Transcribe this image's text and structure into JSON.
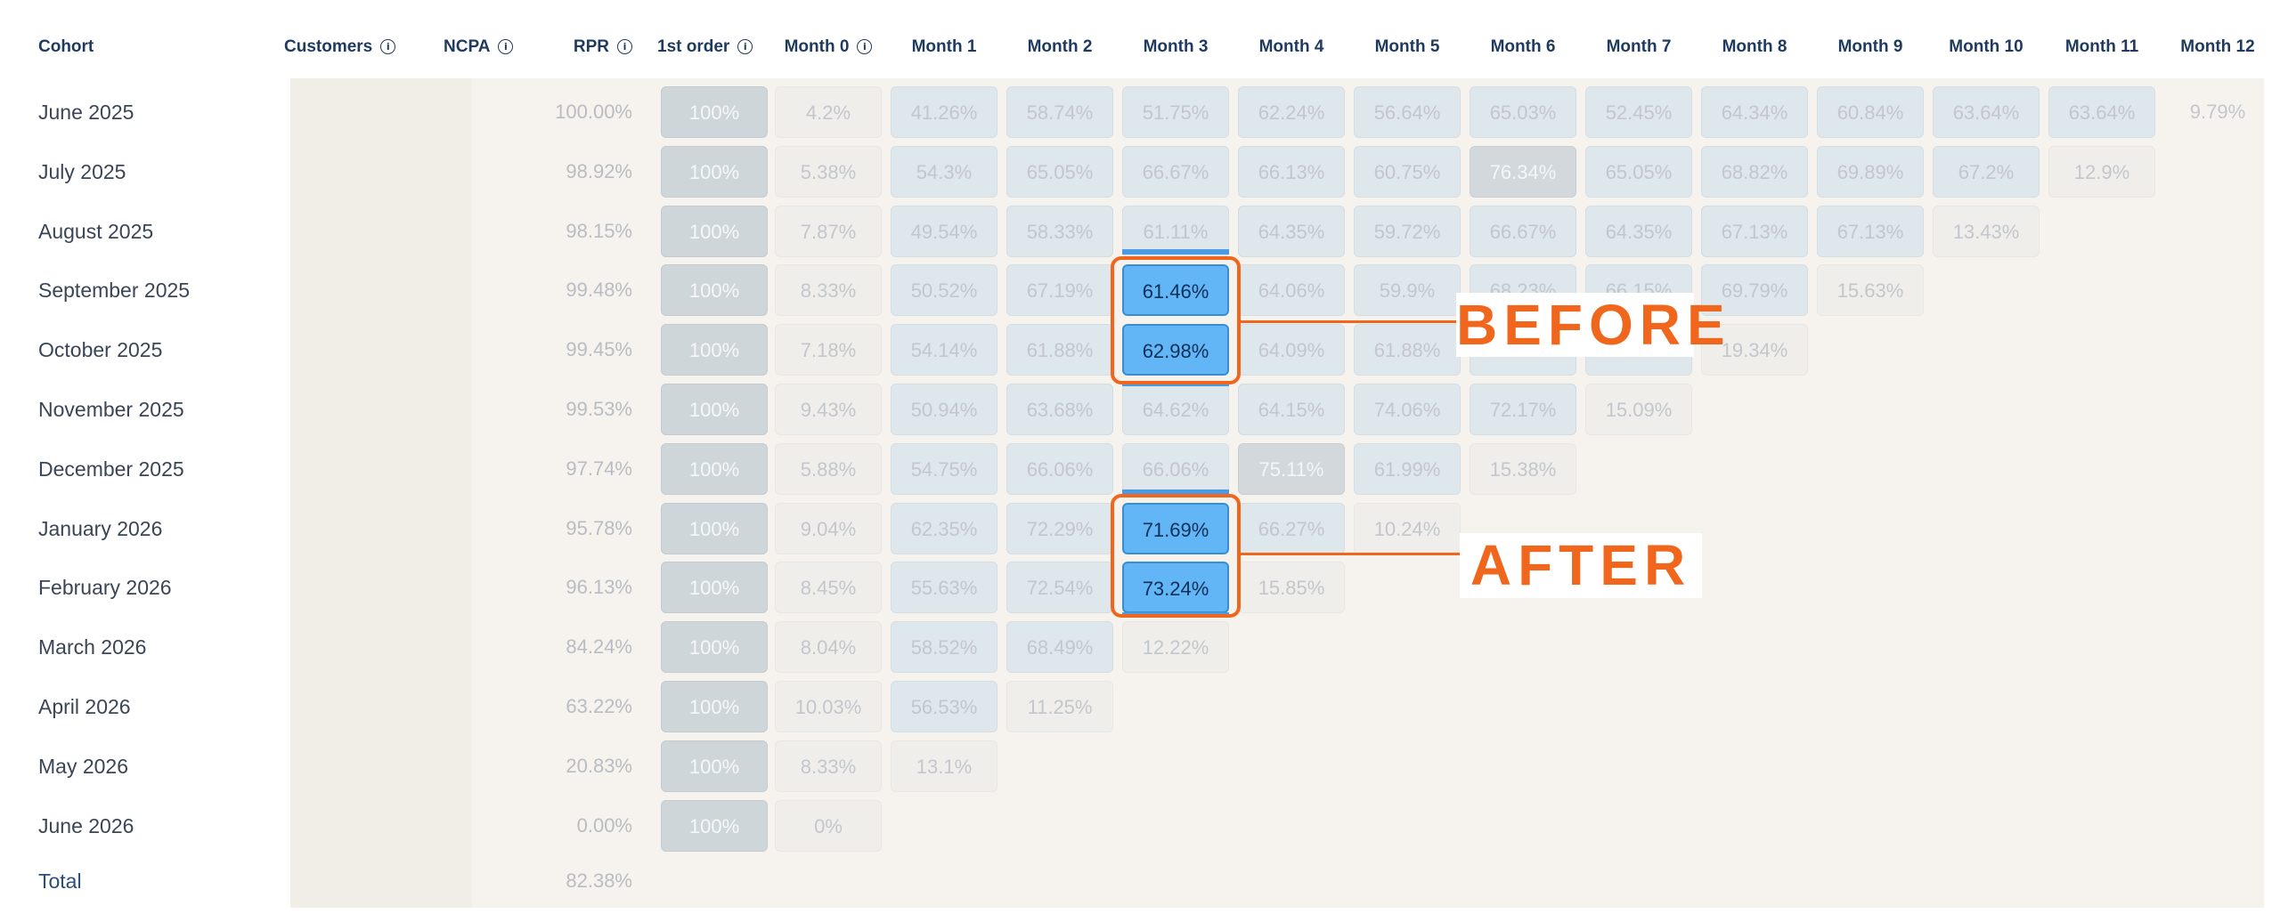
{
  "columns": {
    "cohort": "Cohort",
    "customers": "Customers",
    "ncpa": "NCPA",
    "rpr": "RPR",
    "first_order": "1st order",
    "months": [
      "Month 0",
      "Month 1",
      "Month 2",
      "Month 3",
      "Month 4",
      "Month 5",
      "Month 6",
      "Month 7",
      "Month 8",
      "Month 9",
      "Month 10",
      "Month 11",
      "Month 12"
    ]
  },
  "info_icon_glyph": "i",
  "rows": [
    {
      "label": "June 2025",
      "rpr": "100.00%",
      "first": "100%",
      "months": [
        "4.2%",
        "41.26%",
        "58.74%",
        "51.75%",
        "62.24%",
        "56.64%",
        "65.03%",
        "52.45%",
        "64.34%",
        "60.84%",
        "63.64%",
        "63.64%",
        "9.79%"
      ]
    },
    {
      "label": "July 2025",
      "rpr": "98.92%",
      "first": "100%",
      "months": [
        "5.38%",
        "54.3%",
        "65.05%",
        "66.67%",
        "66.13%",
        "60.75%",
        "76.34%",
        "65.05%",
        "68.82%",
        "69.89%",
        "67.2%",
        "12.9%"
      ]
    },
    {
      "label": "August 2025",
      "rpr": "98.15%",
      "first": "100%",
      "months": [
        "7.87%",
        "49.54%",
        "58.33%",
        "61.11%",
        "64.35%",
        "59.72%",
        "66.67%",
        "64.35%",
        "67.13%",
        "67.13%",
        "13.43%"
      ]
    },
    {
      "label": "September 2025",
      "rpr": "99.48%",
      "first": "100%",
      "months": [
        "8.33%",
        "50.52%",
        "67.19%",
        "61.46%",
        "64.06%",
        "59.9%",
        "68.23%",
        "66.15%",
        "69.79%",
        "15.63%"
      ]
    },
    {
      "label": "October 2025",
      "rpr": "99.45%",
      "first": "100%",
      "months": [
        "7.18%",
        "54.14%",
        "61.88%",
        "62.98%",
        "64.09%",
        "61.88%",
        "",
        "",
        "19.34%"
      ]
    },
    {
      "label": "November 2025",
      "rpr": "99.53%",
      "first": "100%",
      "months": [
        "9.43%",
        "50.94%",
        "63.68%",
        "64.62%",
        "64.15%",
        "74.06%",
        "72.17%",
        "15.09%"
      ]
    },
    {
      "label": "December 2025",
      "rpr": "97.74%",
      "first": "100%",
      "months": [
        "5.88%",
        "54.75%",
        "66.06%",
        "66.06%",
        "75.11%",
        "61.99%",
        "15.38%"
      ]
    },
    {
      "label": "January 2026",
      "rpr": "95.78%",
      "first": "100%",
      "months": [
        "9.04%",
        "62.35%",
        "72.29%",
        "71.69%",
        "66.27%",
        "10.24%"
      ]
    },
    {
      "label": "February 2026",
      "rpr": "96.13%",
      "first": "100%",
      "months": [
        "8.45%",
        "55.63%",
        "72.54%",
        "73.24%",
        "15.85%"
      ]
    },
    {
      "label": "March 2026",
      "rpr": "84.24%",
      "first": "100%",
      "months": [
        "8.04%",
        "58.52%",
        "68.49%",
        "12.22%"
      ]
    },
    {
      "label": "April 2026",
      "rpr": "63.22%",
      "first": "100%",
      "months": [
        "10.03%",
        "56.53%",
        "11.25%"
      ]
    },
    {
      "label": "May 2026",
      "rpr": "20.83%",
      "first": "100%",
      "months": [
        "8.33%",
        "13.1%"
      ]
    },
    {
      "label": "June 2026",
      "rpr": "0.00%",
      "first": "100%",
      "months": [
        "0%"
      ]
    }
  ],
  "total": {
    "label": "Total",
    "rpr": "82.38%"
  },
  "annotations": {
    "before": "BEFORE",
    "after": "AFTER"
  },
  "colors": {
    "accent": "#f0661d",
    "highlight": "#63b6f6",
    "header_text": "#1f3a5f"
  }
}
